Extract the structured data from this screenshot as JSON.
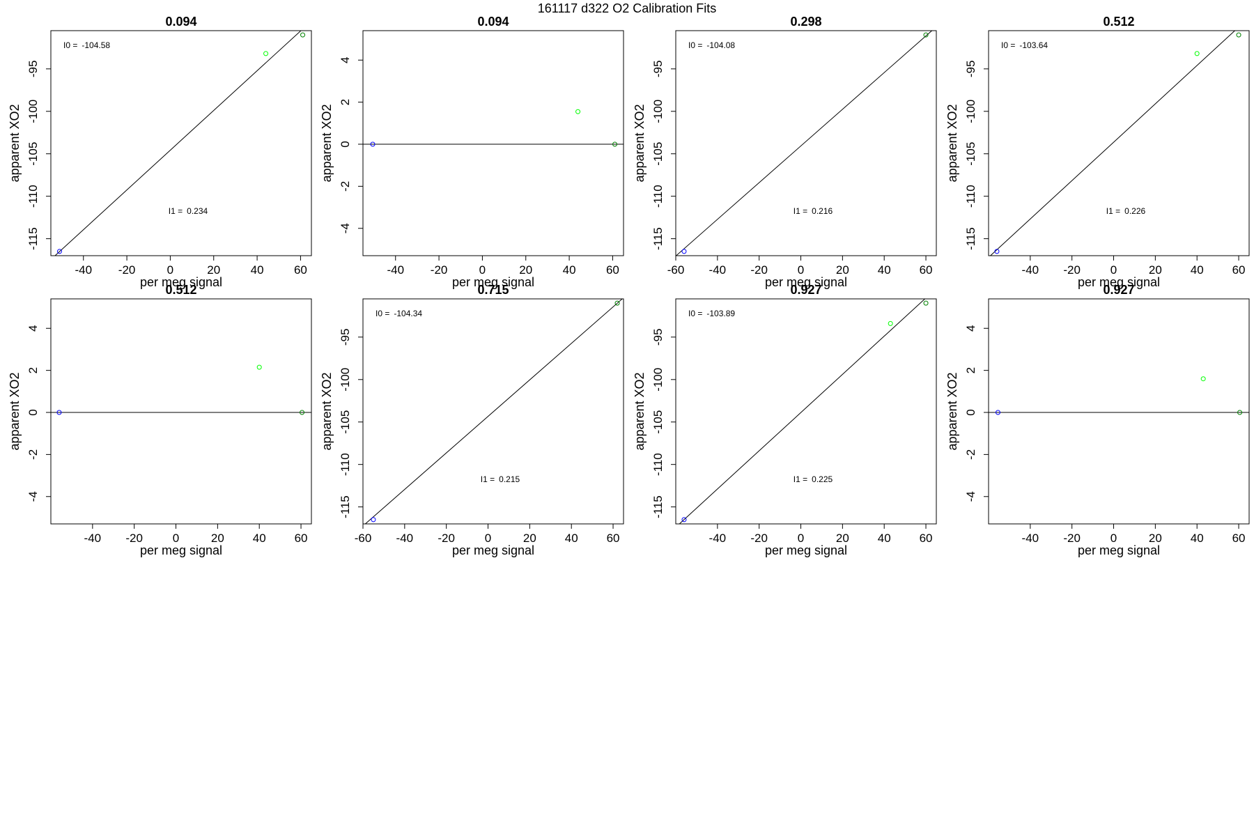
{
  "suptitle": "161117   d322   O2 Calibration Fits",
  "colors": {
    "axis": "#000000",
    "fit_line": "#000000",
    "ref_low": "#0000ff",
    "ref_mid": "#00ff00",
    "ref_high": "#008000"
  },
  "chart_data": [
    {
      "type": "scatter",
      "title": "0.094",
      "xlabel": "per meg signal",
      "ylabel": "apparent XO2",
      "xlim": [
        -55,
        65
      ],
      "ylim": [
        -117,
        -90.5
      ],
      "xticks": [
        -40,
        -20,
        0,
        20,
        40,
        60
      ],
      "yticks": [
        -95,
        -100,
        -105,
        -110,
        -115
      ],
      "points": [
        {
          "x": -51,
          "y": -116.5,
          "color": "#0000ff"
        },
        {
          "x": 44,
          "y": -93.2,
          "color": "#00ff00"
        },
        {
          "x": 61,
          "y": -91.0,
          "color": "#008000"
        }
      ],
      "fit": {
        "slope": 0.234,
        "intercept": -104.58
      },
      "annotations": [
        {
          "label": "I0 =",
          "value": "-104.58"
        },
        {
          "label": "I1 =",
          "value": "0.234"
        }
      ]
    },
    {
      "type": "scatter",
      "title": "0.094",
      "xlabel": "per meg signal",
      "ylabel": "apparent XO2",
      "xlim": [
        -55,
        65
      ],
      "ylim": [
        -5.3,
        5.4
      ],
      "xticks": [
        -40,
        -20,
        0,
        20,
        40,
        60
      ],
      "yticks": [
        4,
        2,
        0,
        -2,
        -4
      ],
      "points": [
        {
          "x": -50.5,
          "y": 0,
          "color": "#0000ff"
        },
        {
          "x": 44,
          "y": 1.55,
          "color": "#00ff00"
        },
        {
          "x": 61,
          "y": 0,
          "color": "#008000"
        }
      ],
      "fit": {
        "slope": 0,
        "intercept": 0
      },
      "annotations": []
    },
    {
      "type": "scatter",
      "title": "0.298",
      "xlabel": "per meg signal",
      "ylabel": "apparent XO2",
      "xlim": [
        -60,
        65
      ],
      "ylim": [
        -117,
        -90.5
      ],
      "xticks": [
        -60,
        -40,
        -20,
        0,
        20,
        40,
        60
      ],
      "yticks": [
        -95,
        -100,
        -105,
        -110,
        -115
      ],
      "points": [
        {
          "x": -56,
          "y": -116.5,
          "color": "#0000ff"
        },
        {
          "x": 60,
          "y": -91.0,
          "color": "#008000"
        }
      ],
      "fit": {
        "slope": 0.216,
        "intercept": -104.08
      },
      "annotations": [
        {
          "label": "I0 =",
          "value": "-104.08"
        },
        {
          "label": "I1 =",
          "value": "0.216"
        }
      ]
    },
    {
      "type": "scatter",
      "title": "0.512",
      "xlabel": "per meg signal",
      "ylabel": "apparent XO2",
      "xlim": [
        -60,
        65
      ],
      "ylim": [
        -117,
        -90.5
      ],
      "xticks": [
        -40,
        -20,
        0,
        20,
        40,
        60
      ],
      "yticks": [
        -95,
        -100,
        -105,
        -110,
        -115
      ],
      "points": [
        {
          "x": -56,
          "y": -116.5,
          "color": "#0000ff"
        },
        {
          "x": 40,
          "y": -93.2,
          "color": "#00ff00"
        },
        {
          "x": 60,
          "y": -91.0,
          "color": "#008000"
        }
      ],
      "fit": {
        "slope": 0.226,
        "intercept": -103.64
      },
      "annotations": [
        {
          "label": "I0 =",
          "value": "-103.64"
        },
        {
          "label": "I1 =",
          "value": "0.226"
        }
      ]
    },
    {
      "type": "scatter",
      "title": "0.512",
      "xlabel": "per meg signal",
      "ylabel": "apparent XO2",
      "xlim": [
        -60,
        65
      ],
      "ylim": [
        -5.3,
        5.4
      ],
      "xticks": [
        -40,
        -20,
        0,
        20,
        40,
        60
      ],
      "yticks": [
        4,
        2,
        0,
        -2,
        -4
      ],
      "points": [
        {
          "x": -56,
          "y": 0,
          "color": "#0000ff"
        },
        {
          "x": 40,
          "y": 2.15,
          "color": "#00ff00"
        },
        {
          "x": 60.5,
          "y": 0,
          "color": "#008000"
        }
      ],
      "fit": {
        "slope": 0,
        "intercept": 0
      },
      "annotations": []
    },
    {
      "type": "scatter",
      "title": "0.715",
      "xlabel": "per meg signal",
      "ylabel": "apparent XO2",
      "xlim": [
        -60,
        65
      ],
      "ylim": [
        -117,
        -90.5
      ],
      "xticks": [
        -60,
        -40,
        -20,
        0,
        20,
        40,
        60
      ],
      "yticks": [
        -95,
        -100,
        -105,
        -110,
        -115
      ],
      "points": [
        {
          "x": -55,
          "y": -116.5,
          "color": "#0000ff"
        },
        {
          "x": 62,
          "y": -91.0,
          "color": "#008000"
        }
      ],
      "fit": {
        "slope": 0.215,
        "intercept": -104.34
      },
      "annotations": [
        {
          "label": "I0 =",
          "value": "-104.34"
        },
        {
          "label": "I1 =",
          "value": "0.215"
        }
      ]
    },
    {
      "type": "scatter",
      "title": "0.927",
      "xlabel": "per meg signal",
      "ylabel": "apparent XO2",
      "xlim": [
        -60,
        65
      ],
      "ylim": [
        -117,
        -90.5
      ],
      "xticks": [
        -40,
        -20,
        0,
        20,
        40,
        60
      ],
      "yticks": [
        -95,
        -100,
        -105,
        -110,
        -115
      ],
      "points": [
        {
          "x": -56,
          "y": -116.5,
          "color": "#0000ff"
        },
        {
          "x": 43,
          "y": -93.4,
          "color": "#00ff00"
        },
        {
          "x": 60,
          "y": -91.0,
          "color": "#008000"
        }
      ],
      "fit": {
        "slope": 0.225,
        "intercept": -103.89
      },
      "annotations": [
        {
          "label": "I0 =",
          "value": "-103.89"
        },
        {
          "label": "I1 =",
          "value": "0.225"
        }
      ]
    },
    {
      "type": "scatter",
      "title": "0.927",
      "xlabel": "per meg signal",
      "ylabel": "apparent XO2",
      "xlim": [
        -60,
        65
      ],
      "ylim": [
        -5.3,
        5.4
      ],
      "xticks": [
        -40,
        -20,
        0,
        20,
        40,
        60
      ],
      "yticks": [
        4,
        2,
        0,
        -2,
        -4
      ],
      "points": [
        {
          "x": -55.5,
          "y": 0,
          "color": "#0000ff"
        },
        {
          "x": 43,
          "y": 1.6,
          "color": "#00ff00"
        },
        {
          "x": 60.5,
          "y": 0,
          "color": "#008000"
        }
      ],
      "fit": {
        "slope": 0,
        "intercept": 0
      },
      "annotations": []
    }
  ]
}
